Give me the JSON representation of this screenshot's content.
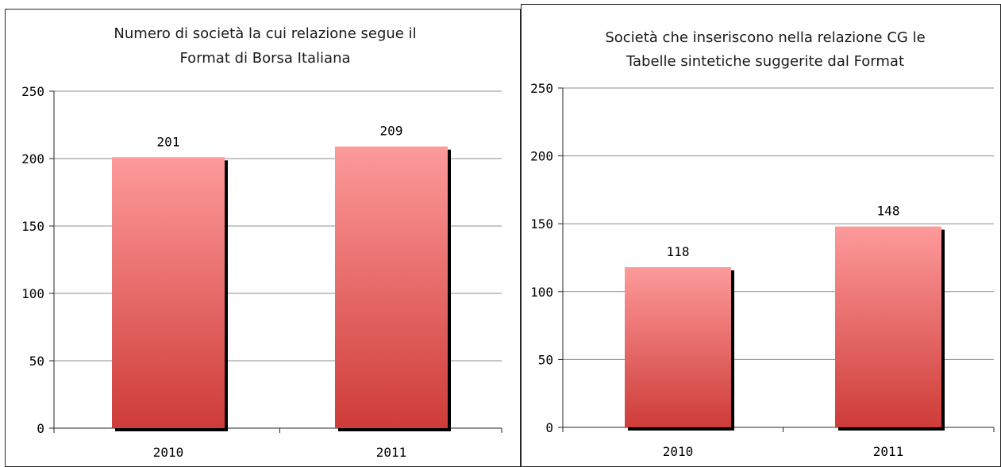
{
  "colors": {
    "bar_top": "#fd9a9a",
    "bar_bottom": "#ce3c38",
    "bar_shadow": "#000000",
    "gridline": "#8c8c8c",
    "frame": "#262626"
  },
  "chart_data": [
    {
      "type": "bar",
      "title": "Numero di società la cui relazione segue il\nFormat di Borsa Italiana",
      "categories": [
        "2010",
        "2011"
      ],
      "values": [
        201,
        209
      ],
      "data_labels": [
        "201",
        "209"
      ],
      "ylim": [
        0,
        250
      ],
      "yticks": [
        0,
        50,
        100,
        150,
        200,
        250
      ],
      "ytick_labels": [
        "0",
        "50",
        "100",
        "150",
        "200",
        "250"
      ],
      "grid": true,
      "legend": "none"
    },
    {
      "type": "bar",
      "title": "Società che inseriscono nella relazione CG le\nTabelle sintetiche suggerite dal Format",
      "categories": [
        "2010",
        "2011"
      ],
      "values": [
        118,
        148
      ],
      "data_labels": [
        "118",
        "148"
      ],
      "ylim": [
        0,
        250
      ],
      "yticks": [
        0,
        50,
        100,
        150,
        200,
        250
      ],
      "ytick_labels": [
        "0",
        "50",
        "100",
        "150",
        "200",
        "250"
      ],
      "grid": true,
      "legend": "none"
    }
  ]
}
